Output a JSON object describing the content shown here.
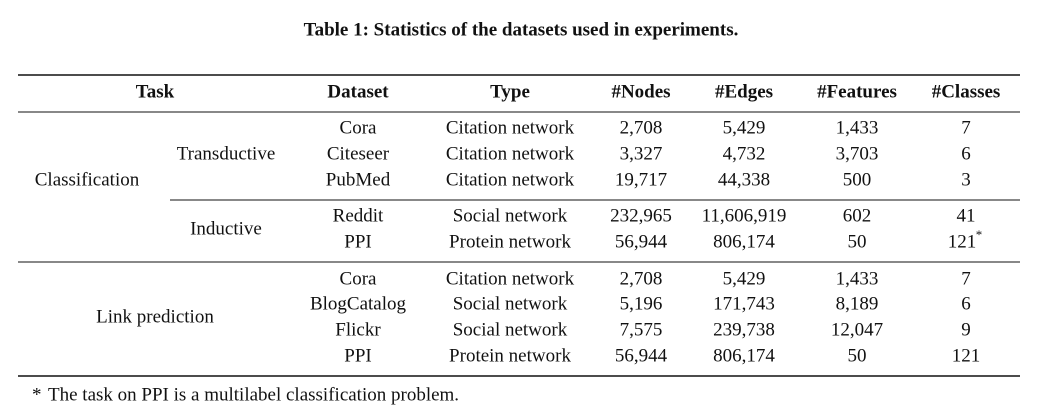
{
  "caption": "Table 1: Statistics of the datasets used in experiments.",
  "header": [
    "Task",
    "Dataset",
    "Type",
    "#Nodes",
    "#Edges",
    "#Features",
    "#Classes"
  ],
  "classification": {
    "task": "Classification",
    "subgroups": [
      {
        "name": "Transductive",
        "rows": [
          [
            "Cora",
            "Citation network",
            "2,708",
            "5,429",
            "1,433",
            "7"
          ],
          [
            "Citeseer",
            "Citation network",
            "3,327",
            "4,732",
            "3,703",
            "6"
          ],
          [
            "PubMed",
            "Citation network",
            "19,717",
            "44,338",
            "500",
            "3"
          ]
        ]
      },
      {
        "name": "Inductive",
        "rows": [
          [
            "Reddit",
            "Social network",
            "232,965",
            "11,606,919",
            "602",
            "41"
          ],
          [
            "PPI",
            "Protein network",
            "56,944",
            "806,174",
            "50",
            "121"
          ]
        ]
      }
    ]
  },
  "link_prediction": {
    "task": "Link prediction",
    "rows": [
      [
        "Cora",
        "Citation network",
        "2,708",
        "5,429",
        "1,433",
        "7"
      ],
      [
        "BlogCatalog",
        "Social network",
        "5,196",
        "171,743",
        "8,189",
        "6"
      ],
      [
        "Flickr",
        "Social network",
        "7,575",
        "239,738",
        "12,047",
        "9"
      ],
      [
        "PPI",
        "Protein network",
        "56,944",
        "806,174",
        "50",
        "121"
      ]
    ]
  },
  "footnote": {
    "mark": "*",
    "text": "The task on PPI is a multilabel classification problem."
  }
}
